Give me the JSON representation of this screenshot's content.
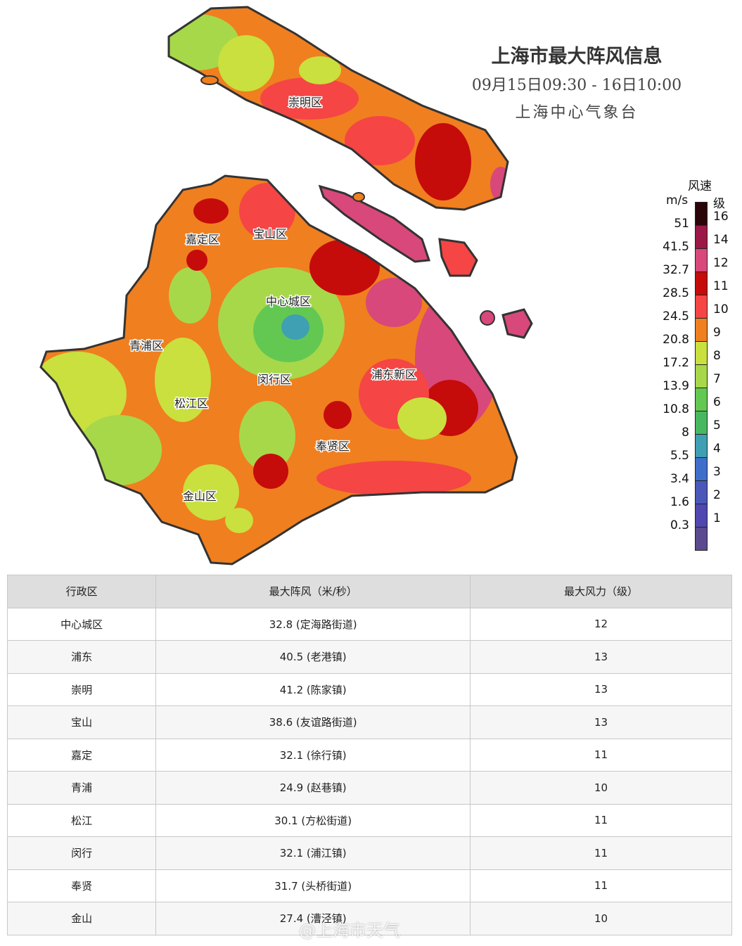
{
  "title": "上海市最大阵风信息",
  "time_range": "09月15日09:30 - 16日10:00",
  "source": "上海中心气象台",
  "map": {
    "districts": [
      "崇明区",
      "嘉定区",
      "宝山区",
      "中心城区",
      "青浦区",
      "闵行区",
      "浦东新区",
      "松江区",
      "奉贤区",
      "金山区"
    ]
  },
  "legend": {
    "title": "风速",
    "unit_left": "m/s",
    "unit_right": "级",
    "speed_labels": [
      "51",
      "41.5",
      "32.7",
      "28.5",
      "24.5",
      "20.8",
      "17.2",
      "13.9",
      "10.8",
      "8",
      "5.5",
      "3.4",
      "1.6",
      "0.3"
    ],
    "grade_labels": [
      "16",
      "14",
      "12",
      "11",
      "10",
      "9",
      "8",
      "7",
      "6",
      "5",
      "4",
      "3",
      "2",
      "1"
    ],
    "colors": [
      "#2b0508",
      "#9b1848",
      "#d8487a",
      "#c60b0b",
      "#f54545",
      "#f07f1f",
      "#c9e03e",
      "#a7d84a",
      "#62c852",
      "#48b860",
      "#3ea0b2",
      "#3f6fca",
      "#4a58ba",
      "#5048b0",
      "#5a4a8e"
    ]
  },
  "table": {
    "headers": [
      "行政区",
      "最大阵风（米/秒）",
      "最大风力（级）"
    ],
    "rows": [
      [
        "中心城区",
        "32.8 (定海路街道)",
        "12"
      ],
      [
        "浦东",
        "40.5 (老港镇)",
        "13"
      ],
      [
        "崇明",
        "41.2 (陈家镇)",
        "13"
      ],
      [
        "宝山",
        "38.6 (友谊路街道)",
        "13"
      ],
      [
        "嘉定",
        "32.1 (徐行镇)",
        "11"
      ],
      [
        "青浦",
        "24.9 (赵巷镇)",
        "10"
      ],
      [
        "松江",
        "30.1 (方松街道)",
        "11"
      ],
      [
        "闵行",
        "32.1 (浦江镇)",
        "11"
      ],
      [
        "奉贤",
        "31.7 (头桥街道)",
        "11"
      ],
      [
        "金山",
        "27.4 (漕泾镇)",
        "10"
      ]
    ]
  },
  "watermark": "@上海市天气"
}
